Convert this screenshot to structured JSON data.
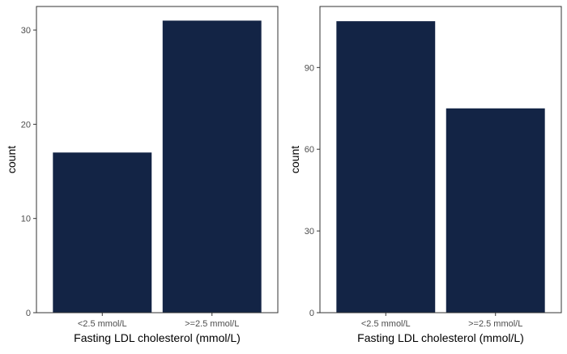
{
  "chart_data": [
    {
      "type": "bar",
      "categories": [
        "<2.5 mmol/L",
        ">=2.5 mmol/L"
      ],
      "values": [
        17,
        31
      ],
      "xlabel": "Fasting LDL cholesterol (mmol/L)",
      "ylabel": "count",
      "ylim": [
        0,
        32.5
      ],
      "yticks": [
        0,
        10,
        20,
        30
      ],
      "grid": false,
      "colors": {
        "bar": "#132445",
        "border": "#333333",
        "tick_text": "#4d4d4d"
      }
    },
    {
      "type": "bar",
      "categories": [
        "<2.5 mmol/L",
        ">=2.5 mmol/L"
      ],
      "values": [
        107,
        75
      ],
      "xlabel": "Fasting LDL cholesterol (mmol/L)",
      "ylabel": "count",
      "ylim": [
        0,
        112.4
      ],
      "yticks": [
        0,
        30,
        60,
        90
      ],
      "grid": false,
      "colors": {
        "bar": "#132445",
        "border": "#333333",
        "tick_text": "#4d4d4d"
      }
    }
  ]
}
